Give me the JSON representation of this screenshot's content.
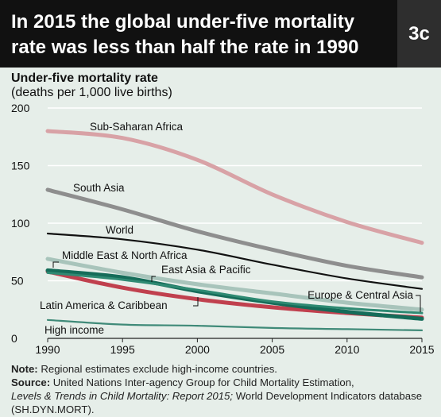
{
  "header": {
    "title": "In 2015 the global under-five mortality rate was less than half the rate in 1990",
    "badge": "3c"
  },
  "y_axis": {
    "title": "Under-five mortality rate",
    "subtitle": "(deaths per 1,000 live births)"
  },
  "chart_data": {
    "type": "line",
    "x": [
      1990,
      1995,
      2000,
      2005,
      2010,
      2015
    ],
    "xlim": [
      1990,
      2015
    ],
    "ylim": [
      0,
      200
    ],
    "xticks": [
      "1990",
      "1995",
      "2000",
      "2005",
      "2010",
      "2015"
    ],
    "yticks": [
      "0",
      "50",
      "100",
      "150",
      "200"
    ],
    "grid": true,
    "series": [
      {
        "name": "Sub-Saharan Africa",
        "color": "#d8a2a6",
        "values": [
          180,
          174,
          155,
          125,
          101,
          83
        ]
      },
      {
        "name": "South Asia",
        "color": "#8e8e8e",
        "values": [
          129,
          112,
          93,
          77,
          63,
          53
        ]
      },
      {
        "name": "World",
        "color": "#111111",
        "values": [
          91,
          86,
          77,
          64,
          52,
          43
        ]
      },
      {
        "name": "Middle East & North Africa",
        "color": "#a8c4bb",
        "values": [
          69,
          57,
          47,
          39,
          31,
          25
        ]
      },
      {
        "name": "Latin America & Caribbean",
        "color": "#c0404e",
        "values": [
          58,
          44,
          34,
          27,
          22,
          18
        ]
      },
      {
        "name": "East Asia & Pacific",
        "color": "#156c59",
        "values": [
          59,
          53,
          41,
          31,
          23,
          17
        ]
      },
      {
        "name": "Europe & Central Asia",
        "color": "#2f8a73",
        "values": [
          57,
          51,
          42,
          32,
          26,
          22
        ]
      },
      {
        "name": "High income",
        "color": "#3f8a78",
        "values": [
          16,
          12,
          11,
          9,
          8,
          7
        ]
      }
    ]
  },
  "notes": {
    "note_label": "Note:",
    "note_text": " Regional estimates exclude high-income countries.",
    "source_label": "Source:",
    "source_text_1": " United Nations Inter-agency Group for Child Mortality Estimation,",
    "source_italic": "Levels & Trends in Child Mortality: Report 2015;",
    "source_text_2": " World Development Indicators database (SH.DYN.MORT)."
  }
}
